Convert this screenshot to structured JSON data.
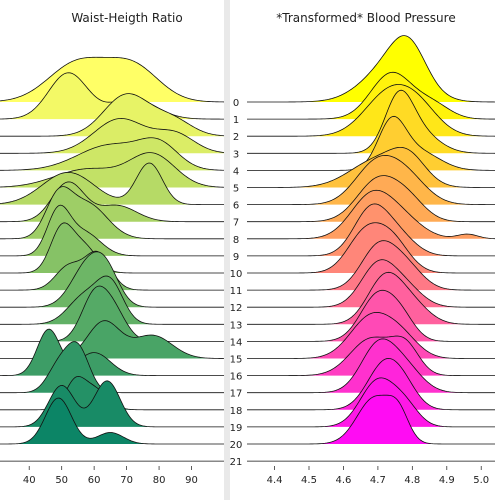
{
  "chart_data": [
    {
      "type": "area",
      "title": "Waist-Heigth Ratio",
      "xlabel": "",
      "ylabel": "",
      "xlim": [
        31,
        100
      ],
      "x_ticks": [
        40,
        50,
        60,
        70,
        80,
        90
      ],
      "colormap": "summer_r",
      "series": [
        {
          "name": "0",
          "peaks": [
            [
              55,
              9,
              0.85
            ],
            [
              72,
              8,
              0.75
            ]
          ]
        },
        {
          "name": "1",
          "peaks": [
            [
              52,
              6,
              1.0
            ],
            [
              72,
              7,
              0.45
            ]
          ]
        },
        {
          "name": "2",
          "peaks": [
            [
              70,
              7,
              0.9
            ],
            [
              84,
              6,
              0.35
            ]
          ]
        },
        {
          "name": "3",
          "peaks": [
            [
              68,
              8,
              0.75
            ],
            [
              85,
              6,
              0.4
            ]
          ]
        },
        {
          "name": "4",
          "peaks": [
            [
              65,
              10,
              0.55
            ],
            [
              80,
              6,
              0.5
            ]
          ]
        },
        {
          "name": "5",
          "peaks": [
            [
              58,
              10,
              0.4
            ],
            [
              78,
              7,
              0.7
            ]
          ]
        },
        {
          "name": "6",
          "peaks": [
            [
              52,
              8,
              0.7
            ],
            [
              77,
              4,
              0.9
            ]
          ]
        },
        {
          "name": "7",
          "peaks": [
            [
              52,
              5,
              0.85
            ],
            [
              67,
              6,
              0.35
            ]
          ]
        },
        {
          "name": "8",
          "peaks": [
            [
              49,
              4,
              0.85
            ],
            [
              58,
              6,
              0.75
            ]
          ]
        },
        {
          "name": "9",
          "peaks": [
            [
              49,
              3.5,
              0.95
            ],
            [
              57,
              5,
              0.5
            ]
          ]
        },
        {
          "name": "10",
          "peaks": [
            [
              50,
              3.5,
              0.95
            ],
            [
              57,
              4,
              0.55
            ]
          ]
        },
        {
          "name": "11",
          "peaks": [
            [
              52,
              4,
              0.5
            ],
            [
              61,
              4,
              0.8
            ]
          ]
        },
        {
          "name": "12",
          "peaks": [
            [
              58,
              5,
              0.9
            ],
            [
              64,
              4,
              0.6
            ]
          ]
        },
        {
          "name": "13",
          "peaks": [
            [
              57,
              5,
              0.6
            ],
            [
              65,
              4,
              0.85
            ]
          ]
        },
        {
          "name": "14",
          "peaks": [
            [
              60,
              4,
              0.95
            ],
            [
              66,
              4,
              0.6
            ]
          ]
        },
        {
          "name": "15",
          "peaks": [
            [
              63,
              5,
              0.8
            ],
            [
              78,
              6,
              0.5
            ]
          ]
        },
        {
          "name": "16",
          "peaks": [
            [
              46,
              3.5,
              1.0
            ],
            [
              60,
              5,
              0.5
            ]
          ]
        },
        {
          "name": "17",
          "peaks": [
            [
              49,
              3.5,
              0.55
            ],
            [
              55,
              3.5,
              0.95
            ]
          ]
        },
        {
          "name": "18",
          "peaks": [
            [
              54,
              3,
              0.55
            ],
            [
              60,
              4,
              0.45
            ]
          ]
        },
        {
          "name": "19",
          "peaks": [
            [
              50,
              4,
              0.9
            ],
            [
              64,
              4,
              1.0
            ]
          ]
        },
        {
          "name": "20",
          "peaks": [
            [
              49,
              4,
              1.0
            ],
            [
              65,
              4,
              0.25
            ]
          ]
        },
        {
          "name": "21",
          "peaks": []
        }
      ]
    },
    {
      "type": "area",
      "title": "*Transformed* Blood Pressure",
      "xlabel": "",
      "ylabel": "",
      "xlim": [
        4.32,
        5.04
      ],
      "x_ticks": [
        "4.4",
        "4.5",
        "4.6",
        "4.7",
        "4.8",
        "4.9",
        "5.0"
      ],
      "colormap": "spring_r",
      "series": [
        {
          "name": "0",
          "peaks": [
            [
              4.74,
              0.08,
              0.8
            ],
            [
              4.79,
              0.05,
              0.75
            ]
          ]
        },
        {
          "name": "1",
          "peaks": [
            [
              4.74,
              0.06,
              1.0
            ],
            [
              4.86,
              0.05,
              0.3
            ]
          ]
        },
        {
          "name": "2",
          "peaks": [
            [
              4.73,
              0.07,
              0.9
            ],
            [
              4.82,
              0.06,
              0.5
            ]
          ]
        },
        {
          "name": "3",
          "peaks": [
            [
              4.76,
              0.04,
              1.0
            ],
            [
              4.81,
              0.06,
              0.5
            ]
          ]
        },
        {
          "name": "4",
          "peaks": [
            [
              4.74,
              0.04,
              1.0
            ],
            [
              4.82,
              0.06,
              0.4
            ]
          ]
        },
        {
          "name": "5",
          "peaks": [
            [
              4.7,
              0.08,
              0.6
            ],
            [
              4.79,
              0.05,
              0.5
            ]
          ]
        },
        {
          "name": "6",
          "peaks": [
            [
              4.69,
              0.06,
              0.8
            ],
            [
              4.78,
              0.06,
              0.6
            ]
          ]
        },
        {
          "name": "7",
          "peaks": [
            [
              4.7,
              0.06,
              0.9
            ],
            [
              4.79,
              0.05,
              0.4
            ]
          ]
        },
        {
          "name": "8",
          "peaks": [
            [
              4.68,
              0.06,
              0.9
            ],
            [
              4.77,
              0.06,
              0.4
            ],
            [
              4.96,
              0.03,
              0.1
            ]
          ]
        },
        {
          "name": "9",
          "peaks": [
            [
              4.68,
              0.05,
              1.0
            ],
            [
              4.76,
              0.05,
              0.4
            ]
          ]
        },
        {
          "name": "10",
          "peaks": [
            [
              4.66,
              0.05,
              0.8
            ],
            [
              4.74,
              0.05,
              0.7
            ]
          ]
        },
        {
          "name": "11",
          "peaks": [
            [
              4.7,
              0.05,
              0.9
            ],
            [
              4.78,
              0.05,
              0.5
            ]
          ]
        },
        {
          "name": "12",
          "peaks": [
            [
              4.7,
              0.05,
              0.9
            ],
            [
              4.78,
              0.05,
              0.4
            ]
          ]
        },
        {
          "name": "13",
          "peaks": [
            [
              4.72,
              0.05,
              1.0
            ],
            [
              4.8,
              0.05,
              0.4
            ]
          ]
        },
        {
          "name": "14",
          "peaks": [
            [
              4.7,
              0.05,
              1.0
            ],
            [
              4.77,
              0.04,
              0.4
            ]
          ]
        },
        {
          "name": "15",
          "peaks": [
            [
              4.68,
              0.06,
              0.9
            ],
            [
              4.77,
              0.05,
              0.4
            ]
          ]
        },
        {
          "name": "16",
          "peaks": [
            [
              4.68,
              0.06,
              0.8
            ],
            [
              4.78,
              0.04,
              0.6
            ]
          ]
        },
        {
          "name": "17",
          "peaks": [
            [
              4.7,
              0.05,
              1.0
            ],
            [
              4.78,
              0.05,
              0.5
            ]
          ]
        },
        {
          "name": "18",
          "peaks": [
            [
              4.72,
              0.05,
              1.0
            ],
            [
              4.78,
              0.04,
              0.3
            ]
          ]
        },
        {
          "name": "19",
          "peaks": [
            [
              4.7,
              0.05,
              1.0
            ],
            [
              4.78,
              0.04,
              0.4
            ]
          ]
        },
        {
          "name": "20",
          "peaks": [
            [
              4.69,
              0.05,
              1.0
            ],
            [
              4.76,
              0.03,
              0.55
            ]
          ]
        },
        {
          "name": "21",
          "peaks": []
        }
      ]
    }
  ],
  "row_labels": [
    "0",
    "1",
    "2",
    "3",
    "4",
    "5",
    "6",
    "7",
    "8",
    "9",
    "10",
    "11",
    "12",
    "13",
    "14",
    "15",
    "16",
    "17",
    "18",
    "19",
    "20",
    "21"
  ]
}
